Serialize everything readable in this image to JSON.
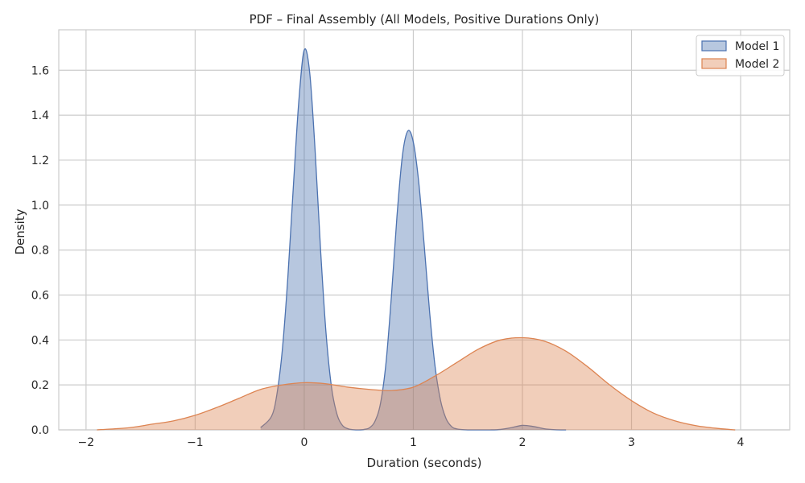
{
  "chart_data": {
    "type": "area",
    "title": "PDF – Final Assembly (All Models, Positive Durations Only)",
    "xlabel": "Duration (seconds)",
    "ylabel": "Density",
    "xlim": [
      -2.25,
      4.45
    ],
    "ylim": [
      0,
      1.78
    ],
    "x_ticks": [
      -2,
      -1,
      0,
      1,
      2,
      3,
      4
    ],
    "x_tick_labels": [
      "−2",
      "−1",
      "0",
      "1",
      "2",
      "3",
      "4"
    ],
    "y_ticks": [
      0.0,
      0.2,
      0.4,
      0.6,
      0.8,
      1.0,
      1.2,
      1.4,
      1.6
    ],
    "y_tick_labels": [
      "0.0",
      "0.2",
      "0.4",
      "0.6",
      "0.8",
      "1.0",
      "1.2",
      "1.4",
      "1.6"
    ],
    "grid": true,
    "legend_position": "top-right",
    "series": [
      {
        "name": "Model 1",
        "color": "#4c72b0",
        "x": [
          -0.4,
          -0.3,
          -0.25,
          -0.2,
          -0.15,
          -0.1,
          -0.05,
          0.0,
          0.05,
          0.1,
          0.15,
          0.2,
          0.25,
          0.3,
          0.35,
          0.4,
          0.45,
          0.5,
          0.55,
          0.6,
          0.65,
          0.7,
          0.75,
          0.8,
          0.85,
          0.9,
          0.95,
          1.0,
          1.05,
          1.1,
          1.15,
          1.2,
          1.25,
          1.3,
          1.35,
          1.4,
          1.5,
          1.6,
          1.7,
          1.8,
          1.9,
          2.0,
          2.1,
          2.2,
          2.3,
          2.4
        ],
        "y": [
          0.01,
          0.06,
          0.16,
          0.36,
          0.68,
          1.08,
          1.46,
          1.69,
          1.59,
          1.24,
          0.8,
          0.43,
          0.19,
          0.07,
          0.02,
          0.005,
          0.001,
          0.0,
          0.002,
          0.01,
          0.04,
          0.12,
          0.3,
          0.6,
          0.95,
          1.22,
          1.33,
          1.28,
          1.1,
          0.82,
          0.52,
          0.28,
          0.13,
          0.05,
          0.015,
          0.004,
          0.0,
          0.0,
          0.0,
          0.002,
          0.01,
          0.02,
          0.015,
          0.005,
          0.001,
          0.0
        ]
      },
      {
        "name": "Model 2",
        "color": "#dd8452",
        "x": [
          -1.9,
          -1.6,
          -1.4,
          -1.2,
          -1.0,
          -0.8,
          -0.6,
          -0.4,
          -0.2,
          0.0,
          0.2,
          0.4,
          0.6,
          0.8,
          1.0,
          1.2,
          1.4,
          1.6,
          1.8,
          2.0,
          2.2,
          2.4,
          2.6,
          2.8,
          3.0,
          3.2,
          3.4,
          3.6,
          3.8,
          3.95
        ],
        "y": [
          0.0,
          0.01,
          0.025,
          0.04,
          0.065,
          0.1,
          0.14,
          0.18,
          0.2,
          0.21,
          0.205,
          0.19,
          0.18,
          0.175,
          0.19,
          0.24,
          0.3,
          0.36,
          0.4,
          0.41,
          0.395,
          0.35,
          0.28,
          0.2,
          0.13,
          0.075,
          0.04,
          0.018,
          0.006,
          0.0
        ]
      }
    ]
  }
}
